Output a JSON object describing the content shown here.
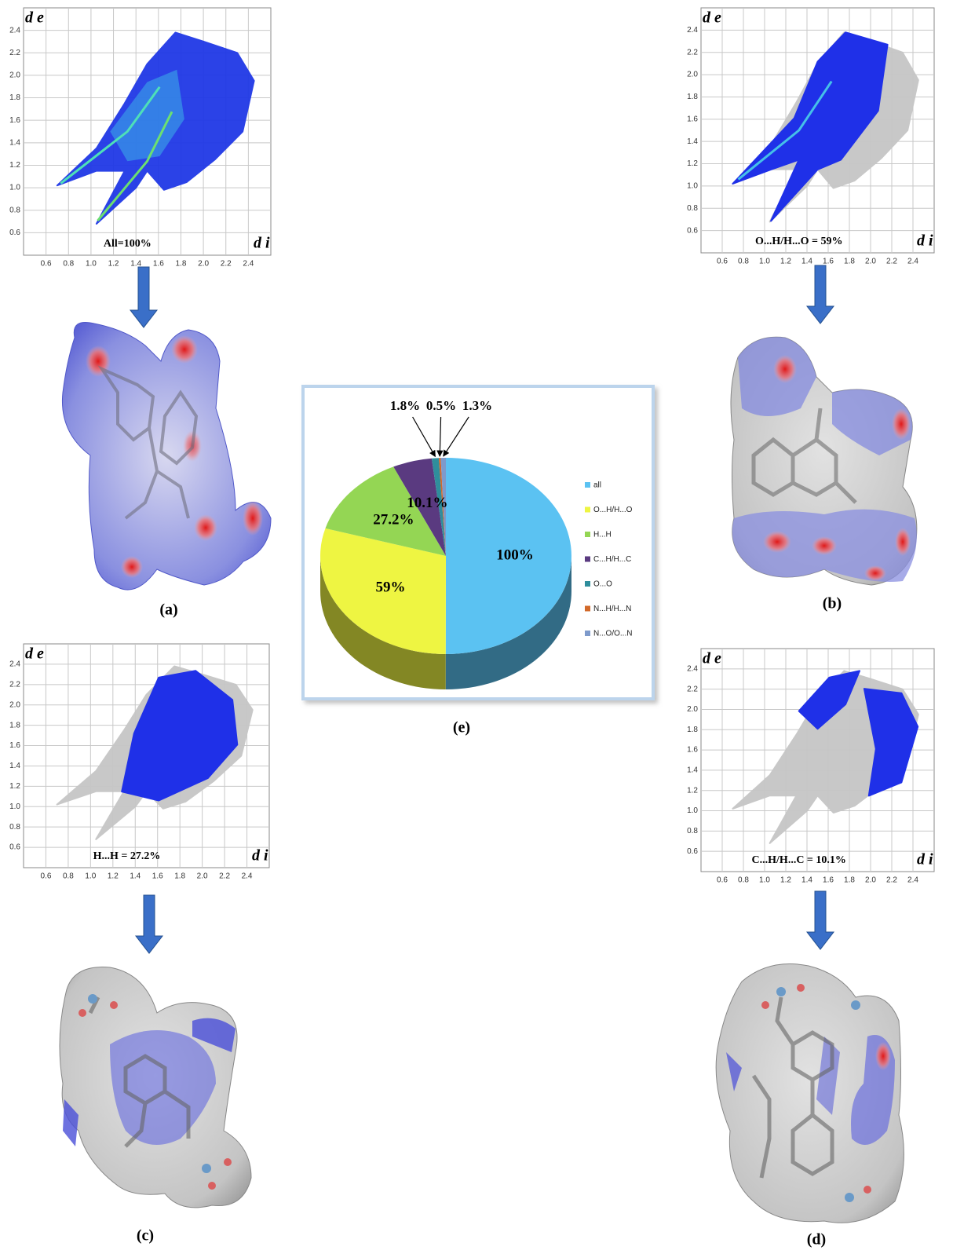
{
  "chart_data": [
    {
      "type": "fingerprint",
      "caption": "(a)",
      "label": "All=100%",
      "xlabel": "d i",
      "ylabel": "d e",
      "xlim": [
        0.4,
        2.6
      ],
      "ylim": [
        0.4,
        2.6
      ],
      "xticks": [
        0.6,
        0.8,
        {
          "value": 1,
          "label": "1.0"
        },
        1.2,
        1.4,
        1.6,
        1.8,
        {
          "value": 2,
          "label": "2.0"
        },
        2.2,
        2.4
      ],
      "yticks": [
        0.6,
        0.8,
        {
          "value": 1,
          "label": "1.0"
        },
        1.2,
        1.4,
        1.6,
        1.8,
        {
          "value": 2,
          "label": "2.0"
        },
        2.2,
        2.4
      ]
    },
    {
      "type": "fingerprint",
      "caption": "(b)",
      "label": "O...H/H...O = 59%",
      "xlabel": "d i",
      "ylabel": "d e",
      "xlim": [
        0.4,
        2.6
      ],
      "ylim": [
        0.4,
        2.6
      ],
      "xticks": [
        0.6,
        0.8,
        {
          "value": 1,
          "label": "1.0"
        },
        1.2,
        1.4,
        1.6,
        1.8,
        {
          "value": 2,
          "label": "2.0"
        },
        2.2,
        2.4
      ],
      "yticks": [
        0.6,
        0.8,
        {
          "value": 1,
          "label": "1.0"
        },
        1.2,
        1.4,
        1.6,
        1.8,
        {
          "value": 2,
          "label": "2.0"
        },
        2.2,
        2.4
      ]
    },
    {
      "type": "fingerprint",
      "caption": "(c)",
      "label": "H...H = 27.2%",
      "xlabel": "d i",
      "ylabel": "d e",
      "xlim": [
        0.4,
        2.6
      ],
      "ylim": [
        0.4,
        2.6
      ],
      "xticks": [
        0.6,
        0.8,
        {
          "value": 1,
          "label": "1.0"
        },
        1.2,
        1.4,
        1.6,
        1.8,
        {
          "value": 2,
          "label": "2.0"
        },
        2.2,
        2.4
      ],
      "yticks": [
        0.6,
        0.8,
        {
          "value": 1,
          "label": "1.0"
        },
        1.2,
        1.4,
        1.6,
        1.8,
        {
          "value": 2,
          "label": "2.0"
        },
        2.2,
        2.4
      ]
    },
    {
      "type": "fingerprint",
      "caption": "(d)",
      "label": "C...H/H...C = 10.1%",
      "xlabel": "d i",
      "ylabel": "d e",
      "xlim": [
        0.4,
        2.6
      ],
      "ylim": [
        0.4,
        2.6
      ],
      "xticks": [
        0.6,
        0.8,
        {
          "value": 1,
          "label": "1.0"
        },
        1.2,
        1.4,
        1.6,
        1.8,
        {
          "value": 2,
          "label": "2.0"
        },
        2.2,
        2.4
      ],
      "yticks": [
        0.6,
        0.8,
        {
          "value": 1,
          "label": "1.0"
        },
        1.2,
        1.4,
        1.6,
        1.8,
        {
          "value": 2,
          "label": "2.0"
        },
        2.2,
        2.4
      ]
    },
    {
      "type": "pie",
      "caption": "(e)",
      "categories": [
        "all",
        "O...H/H...O",
        "H...H",
        "C...H/H...C",
        "O...O",
        "N...H/H...N",
        "N...O/O...N"
      ],
      "values": [
        100,
        59,
        27.2,
        10.1,
        1.8,
        0.5,
        1.3
      ],
      "value_labels": [
        "100%",
        "59%",
        "27.2%",
        "10.1%",
        "1.8%",
        "0.5%",
        "1.3%"
      ],
      "colors": [
        "#5bc2f2",
        "#eef542",
        "#94d654",
        "#5a3a80",
        "#2f8e9c",
        "#d2692a",
        "#7e9acb"
      ],
      "legend": "right"
    }
  ]
}
